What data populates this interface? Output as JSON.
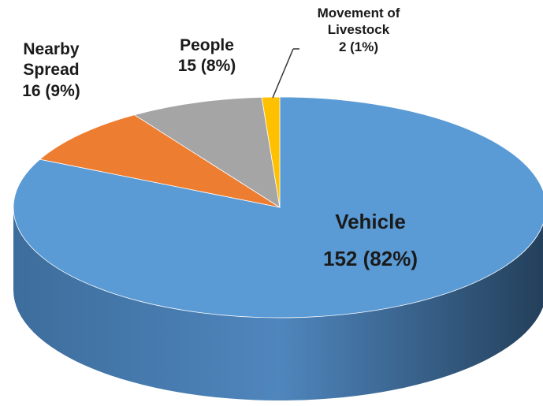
{
  "chart_data": {
    "type": "pie3d",
    "categories": [
      "Vehicle",
      "Nearby Spread",
      "People",
      "Movement of Livestock"
    ],
    "values": [
      152,
      16,
      15,
      2
    ],
    "value_labels": [
      "152 (82%)",
      "16 (9%)",
      "15 (8%)",
      "2 (1%)"
    ],
    "colors": [
      "#5b9bd5",
      "#ed7d31",
      "#a5a5a5",
      "#ffc000"
    ]
  }
}
